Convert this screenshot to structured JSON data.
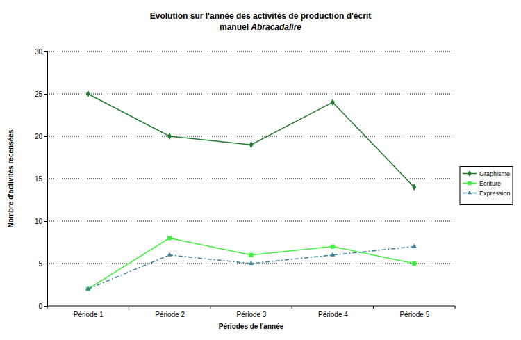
{
  "chart_data": {
    "type": "line",
    "title": [
      "Evolution sur l'année des activités de production d'écrit",
      "manuel Abracadalire"
    ],
    "x_label": "Périodes de l'année",
    "y_label": "Nombre d'activités recensées",
    "categories": [
      "Période 1",
      "Période 2",
      "Période 3",
      "Période 4",
      "Période 5"
    ],
    "series": [
      {
        "name": "Graphisme",
        "color": "#1f7a2e",
        "marker": "diamond",
        "line_style": "solid",
        "values": [
          25,
          20,
          19,
          24,
          14
        ]
      },
      {
        "name": "Ecriture",
        "color": "#3cf03c",
        "marker": "square",
        "line_style": "solid",
        "values": [
          2,
          8,
          6,
          7,
          5
        ]
      },
      {
        "name": "Expression",
        "color": "#3a7f99",
        "marker": "triangle",
        "line_style": "dashdot",
        "values": [
          2,
          6,
          5,
          6,
          7
        ]
      }
    ],
    "ylim": [
      0,
      30
    ],
    "yticks": [
      0,
      5,
      10,
      15,
      20,
      25,
      30
    ],
    "grid": true,
    "legend": "right"
  }
}
